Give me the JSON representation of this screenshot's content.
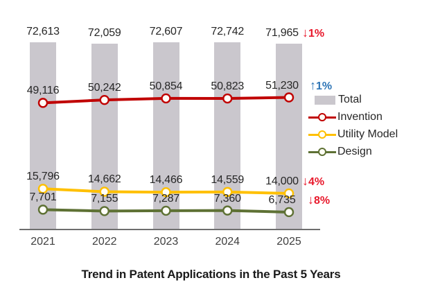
{
  "title": "Trend in Patent Applications in the Past 5 Years",
  "chart_data": {
    "type": "combo",
    "categories": [
      "2021",
      "2022",
      "2023",
      "2024",
      "2025"
    ],
    "series": [
      {
        "name": "Total",
        "type": "bar",
        "color": "#CAC7CD",
        "values": [
          72613,
          72059,
          72607,
          72742,
          71965
        ],
        "labels": [
          "72,613",
          "72,059",
          "72,607",
          "72,742",
          "71,965"
        ],
        "change": {
          "arrow": "↓",
          "text": "1%",
          "direction": "down",
          "color": "#e8192c"
        }
      },
      {
        "name": "Invention",
        "type": "line",
        "color": "#C00000",
        "values": [
          49116,
          50242,
          50854,
          50823,
          51230
        ],
        "labels": [
          "49,116",
          "50,242",
          "50,854",
          "50,823",
          "51,230"
        ],
        "change": {
          "arrow": "↑",
          "text": "1%",
          "direction": "up",
          "color": "#2E75B6"
        }
      },
      {
        "name": "Utility Model",
        "type": "line",
        "color": "#FFC000",
        "values": [
          15796,
          14662,
          14466,
          14559,
          14000
        ],
        "labels": [
          "15,796",
          "14,662",
          "14,466",
          "14,559",
          "14,000"
        ],
        "change": {
          "arrow": "↓",
          "text": "4%",
          "direction": "down",
          "color": "#e8192c"
        }
      },
      {
        "name": "Design",
        "type": "line",
        "color": "#5E7134",
        "values": [
          7701,
          7155,
          7287,
          7360,
          6735
        ],
        "labels": [
          "7,701",
          "7,155",
          "7,287",
          "7,360",
          "6,735"
        ],
        "change": {
          "arrow": "↓",
          "text": "8%",
          "direction": "down",
          "color": "#e8192c"
        }
      }
    ],
    "xlabel": "",
    "ylabel": "",
    "ylim": [
      0,
      75000
    ],
    "grid": false,
    "y_axis_visible": false,
    "legend_position": "right",
    "legend_items": [
      "Total",
      "Invention",
      "Utility Model",
      "Design"
    ]
  }
}
